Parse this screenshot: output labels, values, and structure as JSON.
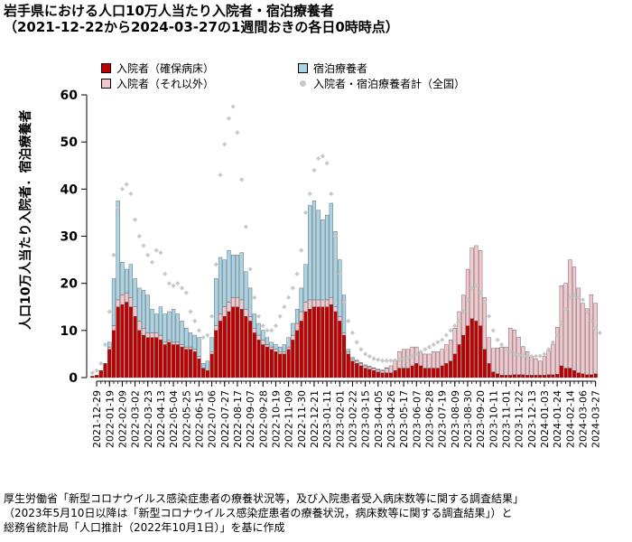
{
  "title_line1": "岩手県における人口10万人当たり入院者・宿泊療養者",
  "title_line2": "（2021-12-22から2024-03-27の1週間おきの各日0時時点）",
  "ylabel": "人口10万人当たり入院者．宿泊療養者",
  "legend": {
    "hosp_bed": "入院者（確保病床）",
    "hosp_other": "入院者（それ以外）",
    "hotel": "宿泊療養者",
    "national": "入院者・宿泊療養者計（全国）"
  },
  "colors": {
    "hosp_bed": "#c00000",
    "hosp_other": "#f4c6cd",
    "hotel": "#a8d4e6",
    "national": "#c8c8c8"
  },
  "source": {
    "line1": "厚生労働省「新型コロナウイルス感染症患者の療養状況等，及び入院患者受入病床数等に関する調査結果」",
    "line2": "（2023年5月10日以降は「新型コロナウイルス感染症患者の療養状況，病床数等に関する調査結果」）と",
    "line3": "総務省統計局「人口推計（2022年10月1日）」を基に作成"
  },
  "chart_data": {
    "type": "bar",
    "stacked": true,
    "title": "岩手県における人口10万人当たり入院者・宿泊療養者",
    "ylabel": "人口10万人当たり入院者．宿泊療養者",
    "ylim": [
      0,
      60
    ],
    "yticks": [
      0,
      10,
      20,
      30,
      40,
      50,
      60
    ],
    "x_start": "2021-12-22",
    "x_end": "2024-03-27",
    "xtick_labels": [
      "2021-12-29",
      "2022-01-19",
      "2022-02-09",
      "2022-03-02",
      "2022-03-23",
      "2022-04-13",
      "2022-05-04",
      "2022-05-25",
      "2022-06-15",
      "2022-07-06",
      "2022-07-27",
      "2022-08-17",
      "2022-09-07",
      "2022-09-28",
      "2022-10-19",
      "2022-11-09",
      "2022-11-30",
      "2022-12-21",
      "2023-01-11",
      "2023-02-01",
      "2023-02-22",
      "2023-03-15",
      "2023-04-05",
      "2023-04-26",
      "2023-05-17",
      "2023-06-07",
      "2023-06-28",
      "2023-07-19",
      "2023-08-09",
      "2023-08-30",
      "2023-09-20",
      "2023-10-11",
      "2023-11-01",
      "2023-11-22",
      "2023-12-13",
      "2024-01-03",
      "2024-01-24",
      "2024-02-14",
      "2024-03-06",
      "2024-03-27"
    ],
    "series": [
      {
        "name": "入院者（確保病床）",
        "values": [
          0.3,
          0.5,
          1.5,
          3.0,
          6.0,
          10.0,
          15.0,
          15.5,
          16.0,
          15.0,
          13.0,
          10.0,
          9.0,
          8.5,
          8.5,
          8.5,
          8.0,
          7.0,
          7.5,
          7.0,
          7.0,
          6.5,
          6.0,
          6.0,
          5.5,
          4.0,
          2.0,
          1.5,
          5.0,
          10.0,
          12.0,
          13.0,
          14.0,
          15.0,
          15.0,
          14.5,
          13.0,
          12.0,
          9.5,
          8.0,
          7.0,
          6.5,
          6.0,
          5.5,
          5.0,
          5.0,
          6.0,
          8.0,
          10.0,
          12.0,
          14.0,
          14.5,
          15.0,
          15.0,
          15.0,
          15.0,
          15.5,
          14.0,
          12.0,
          9.0,
          5.0,
          3.5,
          3.0,
          2.5,
          2.0,
          1.8,
          1.5,
          1.2,
          1.0,
          1.0,
          1.0,
          1.5,
          2.0,
          2.0,
          2.0,
          2.5,
          3.0,
          2.5,
          2.0,
          2.0,
          2.0,
          2.0,
          2.5,
          3.0,
          3.5,
          5.0,
          7.0,
          9.0,
          11.0,
          12.5,
          12.0,
          11.0,
          6.0,
          3.0,
          1.2,
          0.8,
          0.5,
          0.5,
          0.5,
          0.6,
          0.6,
          0.6,
          0.5,
          0.5,
          0.5,
          0.5,
          0.5,
          0.6,
          0.6,
          0.7,
          2.5,
          2.0,
          2.0,
          1.5,
          1.0,
          0.8,
          0.6,
          0.6,
          0.8,
          0.8
        ],
        "color": "#c00000"
      },
      {
        "name": "入院者（それ以外）",
        "values": [
          0.0,
          0.0,
          0.0,
          0.0,
          0.5,
          1.0,
          1.5,
          2.0,
          2.0,
          2.0,
          2.0,
          2.0,
          1.5,
          1.0,
          1.0,
          1.0,
          1.0,
          0.5,
          0.5,
          0.5,
          0.5,
          0.5,
          0.5,
          0.5,
          0.5,
          0.5,
          0.0,
          0.0,
          0.5,
          1.0,
          1.5,
          2.0,
          2.0,
          2.0,
          2.0,
          2.0,
          1.5,
          1.0,
          1.0,
          1.0,
          1.0,
          0.5,
          0.5,
          0.5,
          0.5,
          0.5,
          0.5,
          1.0,
          1.5,
          2.0,
          2.0,
          2.0,
          1.5,
          1.5,
          1.5,
          1.5,
          1.5,
          1.0,
          1.0,
          0.5,
          0.5,
          0.5,
          0.5,
          0.5,
          0.5,
          0.5,
          0.5,
          0.5,
          0.5,
          1.0,
          1.5,
          2.0,
          3.5,
          4.0,
          4.0,
          4.0,
          3.5,
          3.0,
          3.0,
          3.0,
          3.5,
          3.5,
          3.5,
          4.0,
          4.5,
          5.5,
          7.0,
          8.5,
          12.0,
          15.0,
          16.0,
          16.0,
          11.0,
          5.5,
          5.0,
          5.5,
          6.0,
          6.0,
          10.0,
          9.5,
          8.0,
          6.0,
          5.0,
          4.0,
          3.5,
          3.0,
          4.0,
          5.0,
          6.5,
          10.0,
          17.0,
          18.0,
          23.0,
          22.0,
          18.0,
          15.0,
          14.0,
          17.0,
          15.0,
          12.0
        ],
        "color": "#f4c6cd"
      },
      {
        "name": "宿泊療養者",
        "values": [
          0.0,
          0.0,
          0.0,
          0.0,
          1.0,
          10.0,
          21.0,
          7.0,
          5.0,
          7.0,
          6.0,
          7.0,
          8.0,
          8.0,
          5.0,
          4.0,
          6.0,
          6.0,
          6.0,
          7.0,
          6.0,
          5.0,
          4.0,
          3.0,
          3.0,
          4.0,
          1.0,
          2.0,
          3.0,
          10.0,
          12.0,
          10.0,
          11.0,
          9.0,
          9.0,
          10.0,
          8.0,
          6.0,
          3.0,
          2.5,
          2.0,
          1.5,
          1.0,
          1.0,
          1.0,
          1.5,
          2.0,
          2.5,
          3.0,
          5.0,
          8.0,
          20.0,
          21.0,
          19.0,
          17.0,
          18.0,
          20.0,
          16.0,
          12.0,
          8.0,
          0.5,
          0.3,
          0.2,
          0.2,
          0.2,
          0.1,
          0.1,
          0.1,
          0.1,
          0.1,
          0.0,
          0.0,
          0.0,
          0.0,
          0.0,
          0.0,
          0.0,
          0.0,
          0.0,
          0.0,
          0.0,
          0.0,
          0.0,
          0.0,
          0.0,
          0.0,
          0.0,
          0.0,
          0.0,
          0.0,
          0.0,
          0.0,
          0.0,
          0.0,
          0.0,
          0.0,
          0.0,
          0.0,
          0.0,
          0.0,
          0.0,
          0.0,
          0.0,
          0.0,
          0.0,
          0.0,
          0.0,
          0.0,
          0.0,
          0.0,
          0.0,
          0.0,
          0.0,
          0.0,
          0.0,
          0.0,
          0.0,
          0.0,
          0.0,
          0.0
        ],
        "color": "#a8d4e6"
      },
      {
        "name": "入院者・宿泊療養者計（全国）",
        "type": "scatter",
        "values": [
          1.0,
          1.5,
          3.0,
          7.0,
          14.0,
          26.0,
          36.0,
          40.0,
          41.0,
          39.0,
          33.5,
          30.0,
          28.0,
          26.0,
          24.5,
          27.0,
          26.5,
          22.0,
          20.0,
          19.5,
          20.0,
          19.0,
          18.0,
          14.0,
          12.0,
          10.0,
          8.5,
          9.0,
          13.0,
          24.0,
          43.0,
          49.5,
          55.0,
          57.5,
          52.0,
          42.0,
          32.0,
          23.0,
          17.0,
          13.0,
          11.0,
          10.0,
          10.0,
          11.0,
          13.0,
          15.0,
          17.0,
          19.0,
          22.0,
          27.0,
          35.0,
          39.0,
          44.0,
          46.5,
          47.0,
          45.5,
          39.0,
          30.0,
          22.0,
          16.0,
          12.0,
          9.5,
          7.5,
          6.0,
          5.0,
          4.5,
          4.0,
          3.8,
          3.6,
          3.6,
          3.6,
          3.7,
          3.8,
          4.0,
          4.2,
          4.5,
          5.0,
          5.5,
          6.0,
          6.5,
          7.0,
          7.5,
          8.0,
          9.0,
          10.0,
          11.0,
          12.0,
          14.0,
          16.5,
          19.0,
          19.5,
          18.0,
          16.0,
          13.0,
          10.0,
          8.0,
          7.0,
          6.0,
          5.5,
          5.0,
          4.8,
          4.6,
          4.5,
          4.5,
          4.5,
          4.6,
          5.0,
          6.0,
          7.5,
          9.0,
          11.5,
          14.5,
          17.0,
          17.5,
          17.0,
          16.5,
          14.0,
          12.0,
          10.5,
          9.5
        ],
        "color": "#c8c8c8"
      }
    ]
  }
}
